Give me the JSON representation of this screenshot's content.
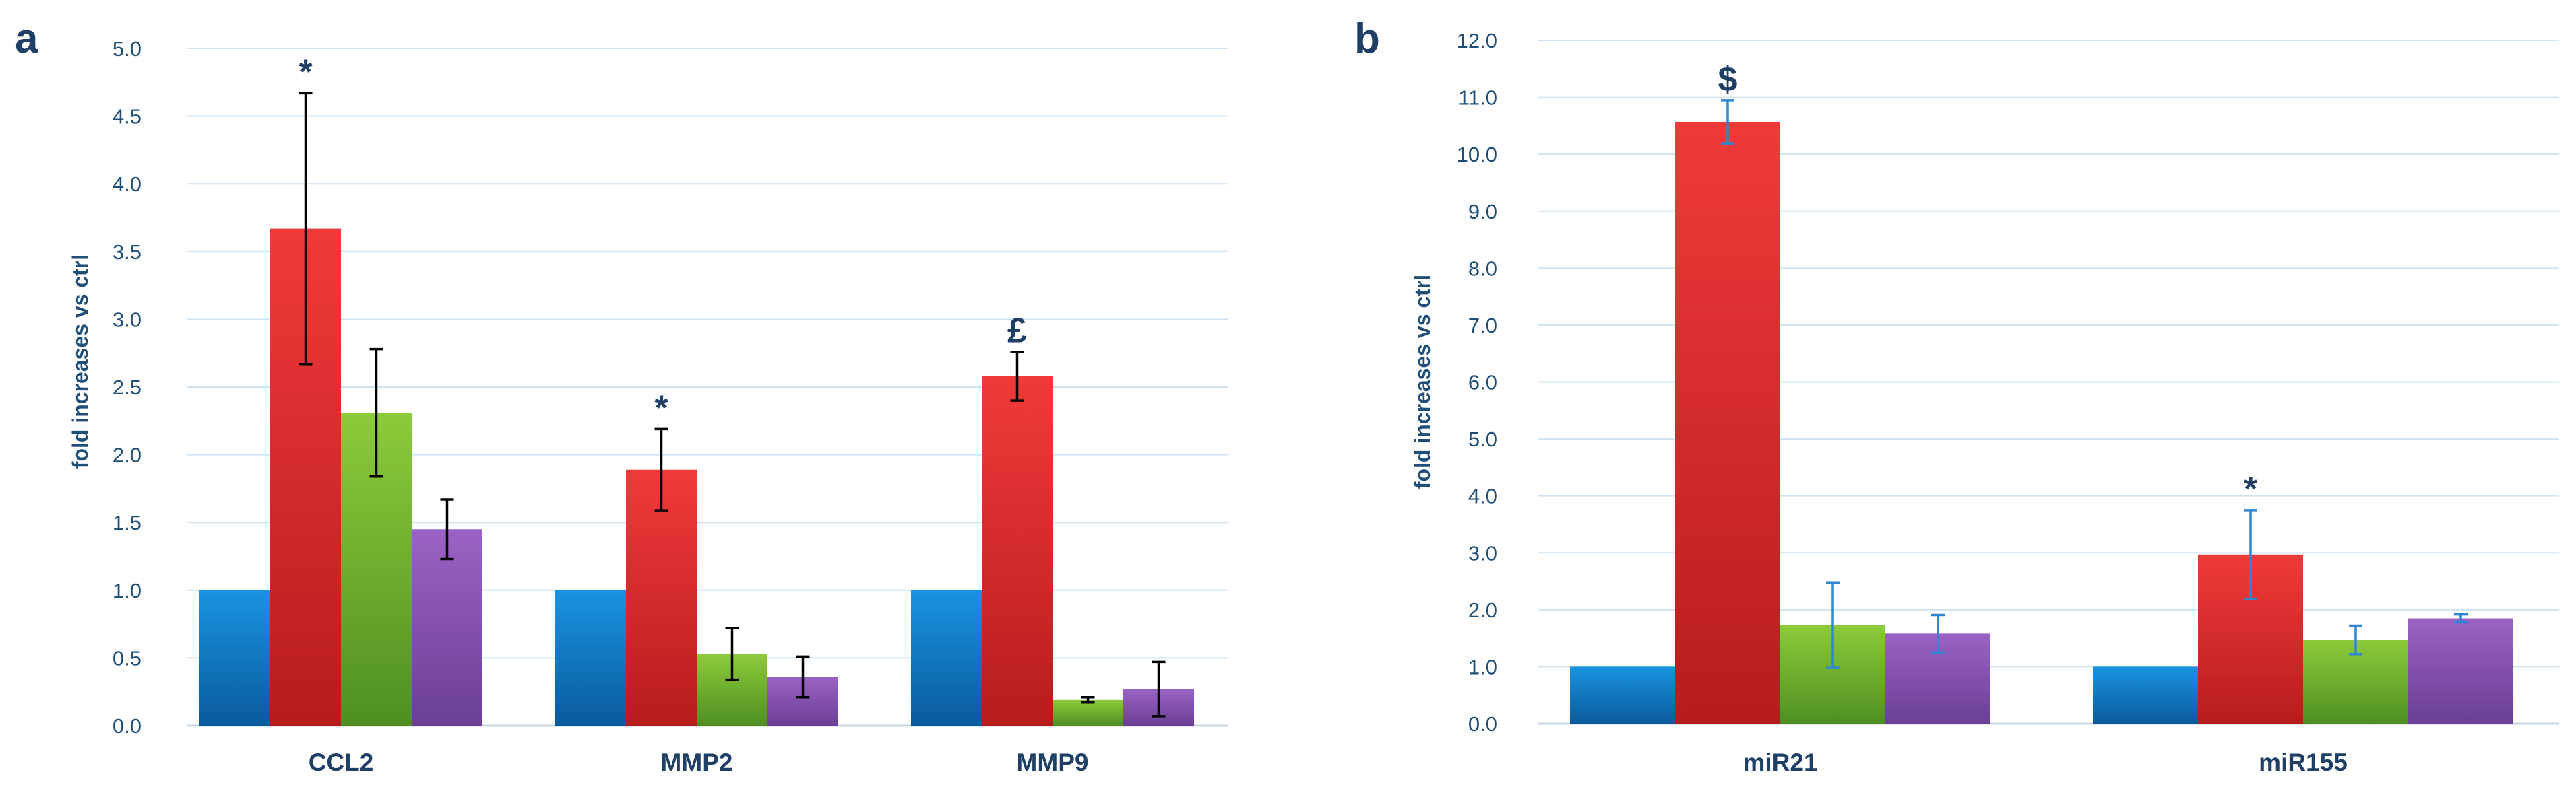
{
  "chart_data": [
    {
      "panel": "a",
      "type": "bar",
      "ylabel": "fold increases vs ctrl",
      "ylim": [
        0,
        5
      ],
      "ytick_step": 0.5,
      "yticks": [
        "0.0",
        "0.5",
        "1.0",
        "1.5",
        "2.0",
        "2.5",
        "3.0",
        "3.5",
        "4.0",
        "4.5",
        "5.0"
      ],
      "grid": true,
      "categories": [
        "CCL2",
        "MMP2",
        "MMP9"
      ],
      "error_bar_color": "#000000",
      "series": [
        {
          "color": "blue",
          "values": [
            1.0,
            1.0,
            1.0
          ],
          "errors": [
            0,
            0,
            0
          ]
        },
        {
          "color": "red",
          "values": [
            3.67,
            1.89,
            2.58
          ],
          "errors": [
            1.0,
            0.3,
            0.18
          ]
        },
        {
          "color": "green",
          "values": [
            2.31,
            0.53,
            0.19
          ],
          "errors": [
            0.47,
            0.19,
            0.02
          ]
        },
        {
          "color": "purple",
          "values": [
            1.45,
            0.36,
            0.27
          ],
          "errors": [
            0.22,
            0.15,
            0.2
          ]
        }
      ],
      "annotations": [
        {
          "text": "*",
          "category": 0,
          "series": 1
        },
        {
          "text": "*",
          "category": 1,
          "series": 1
        },
        {
          "text": "£",
          "category": 2,
          "series": 1
        }
      ]
    },
    {
      "panel": "b",
      "type": "bar",
      "ylabel": "fold increases vs ctrl",
      "ylim": [
        0,
        12
      ],
      "ytick_step": 1,
      "yticks": [
        "0.0",
        "1.0",
        "2.0",
        "3.0",
        "4.0",
        "5.0",
        "6.0",
        "7.0",
        "8.0",
        "9.0",
        "10.0",
        "11.0",
        "12.0"
      ],
      "grid": true,
      "categories": [
        "miR21",
        "miR155"
      ],
      "error_bar_color": "#2e86d4",
      "series": [
        {
          "color": "blue",
          "values": [
            1.0,
            1.0
          ],
          "errors": [
            0,
            0
          ]
        },
        {
          "color": "red",
          "values": [
            10.57,
            2.97
          ],
          "errors": [
            0.38,
            0.78
          ]
        },
        {
          "color": "green",
          "values": [
            1.73,
            1.47
          ],
          "errors": [
            0.75,
            0.25
          ]
        },
        {
          "color": "purple",
          "values": [
            1.58,
            1.85
          ],
          "errors": [
            0.33,
            0.07
          ]
        }
      ],
      "annotations": [
        {
          "text": "$",
          "category": 0,
          "series": 1
        },
        {
          "text": "*",
          "category": 1,
          "series": 1
        }
      ]
    }
  ],
  "colors": {
    "blue": [
      "#1a93e0",
      "#0a5b9c"
    ],
    "red": [
      "#f03a3a",
      "#b71c1c"
    ],
    "green": [
      "#8ccb3a",
      "#4f8f22"
    ],
    "purple": [
      "#9b62c4",
      "#6a3f94"
    ],
    "grid": "#cfe3f2",
    "axis": "#c9d6e3"
  }
}
